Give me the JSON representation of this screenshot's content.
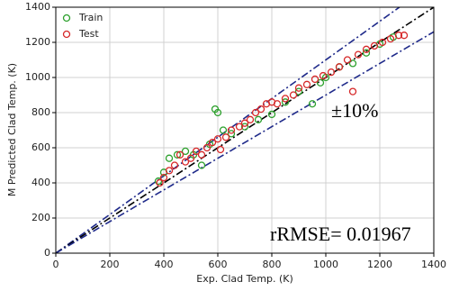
{
  "chart_data": {
    "type": "scatter",
    "x_label": "Exp. Clad Temp. (K)",
    "y_label": "M Predicted Clad Temp. (K)",
    "xlim": [
      0,
      1400
    ],
    "ylim": [
      0,
      1400
    ],
    "xticks": [
      0,
      200,
      400,
      600,
      800,
      1000,
      1200,
      1400
    ],
    "yticks": [
      0,
      200,
      400,
      600,
      800,
      1000,
      1200,
      1400
    ],
    "grid": true,
    "legend": "upper left",
    "annotations": [
      "±10%",
      "rRMSE= 0.01967"
    ],
    "reference_lines": [
      {
        "slope": 1.1,
        "color": "#1f2a8a"
      },
      {
        "slope": 1,
        "color": "#000000"
      },
      {
        "slope": 0.9,
        "color": "#1f2a8a"
      }
    ],
    "series": [
      {
        "name": "Train",
        "color": "#2ca02c",
        "x": [
          380,
          400,
          420,
          450,
          480,
          510,
          540,
          570,
          590,
          600,
          620,
          650,
          700,
          750,
          800,
          850,
          900,
          950,
          980,
          1000,
          1050,
          1100,
          1150,
          1200,
          1250
        ],
        "values": [
          410,
          460,
          540,
          560,
          580,
          560,
          500,
          620,
          820,
          800,
          700,
          680,
          720,
          760,
          790,
          860,
          920,
          850,
          970,
          1000,
          1060,
          1080,
          1140,
          1190,
          1230
        ]
      },
      {
        "name": "Test",
        "color": "#d62728",
        "x": [
          385,
          400,
          420,
          440,
          460,
          480,
          500,
          520,
          540,
          560,
          580,
          600,
          610,
          630,
          650,
          680,
          700,
          720,
          740,
          760,
          780,
          800,
          820,
          850,
          880,
          900,
          930,
          960,
          990,
          1020,
          1050,
          1080,
          1100,
          1120,
          1150,
          1180,
          1210,
          1240,
          1270,
          1290
        ],
        "values": [
          400,
          430,
          470,
          500,
          560,
          520,
          540,
          580,
          560,
          600,
          630,
          650,
          590,
          660,
          700,
          720,
          740,
          760,
          800,
          820,
          850,
          860,
          850,
          880,
          900,
          940,
          960,
          990,
          1010,
          1030,
          1060,
          1100,
          920,
          1130,
          1160,
          1180,
          1200,
          1220,
          1240,
          1240
        ]
      }
    ]
  }
}
